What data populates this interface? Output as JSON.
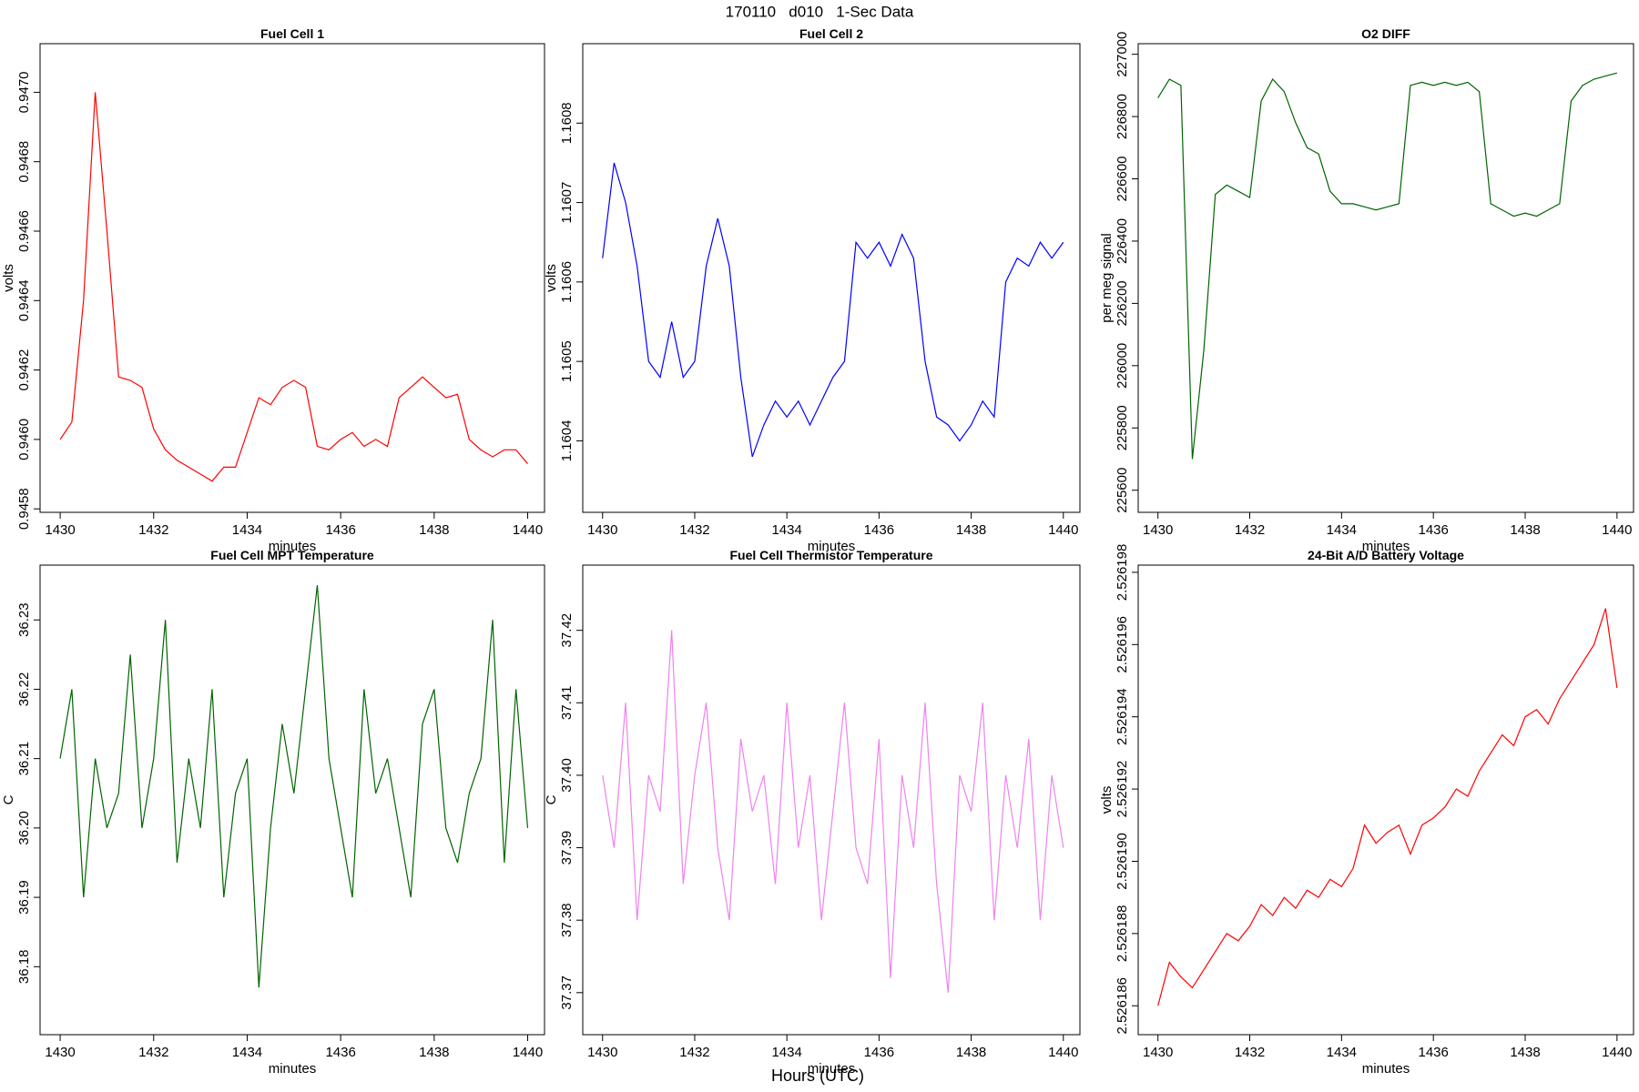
{
  "suptitle": "170110   d010   1-Sec Data",
  "supxlabel": "Hours (UTC)",
  "chart_data": [
    {
      "type": "line",
      "title": "Fuel Cell 1",
      "xlabel": "minutes",
      "ylabel": "volts",
      "color": "#ff0000",
      "x": [
        1430,
        1430.25,
        1430.5,
        1430.75,
        1431,
        1431.25,
        1431.5,
        1431.75,
        1432,
        1432.25,
        1432.5,
        1432.75,
        1433,
        1433.25,
        1433.5,
        1433.75,
        1434,
        1434.25,
        1434.5,
        1434.75,
        1435,
        1435.25,
        1435.5,
        1435.75,
        1436,
        1436.25,
        1436.5,
        1436.75,
        1437,
        1437.25,
        1437.5,
        1437.75,
        1438,
        1438.25,
        1438.5,
        1438.75,
        1439,
        1439.25,
        1439.5,
        1439.75,
        1440
      ],
      "values": [
        0.946,
        0.94605,
        0.9464,
        0.947,
        0.9466,
        0.94618,
        0.94617,
        0.94615,
        0.94603,
        0.94597,
        0.94594,
        0.94592,
        0.9459,
        0.94588,
        0.94592,
        0.94592,
        0.94602,
        0.94612,
        0.9461,
        0.94615,
        0.94617,
        0.94615,
        0.94598,
        0.94597,
        0.946,
        0.94602,
        0.94598,
        0.946,
        0.94598,
        0.94612,
        0.94615,
        0.94618,
        0.94615,
        0.94612,
        0.94613,
        0.946,
        0.94597,
        0.94595,
        0.94597,
        0.94597,
        0.94593
      ],
      "xlim": [
        1429.57,
        1440.36
      ],
      "xticks": [
        1430,
        1432,
        1434,
        1436,
        1438,
        1440
      ],
      "ylim": [
        0.94579,
        0.94714
      ],
      "yticks": [
        0.9458,
        {
          "value": 0.946,
          "label": "0.9460"
        },
        0.9462,
        0.9464,
        0.9466,
        0.9468,
        {
          "value": 0.947,
          "label": "0.9470"
        }
      ]
    },
    {
      "type": "line",
      "title": "Fuel Cell 2",
      "xlabel": "minutes",
      "ylabel": "volts",
      "color": "#0000ff",
      "x": [
        1430,
        1430.25,
        1430.5,
        1430.75,
        1431,
        1431.25,
        1431.5,
        1431.75,
        1432,
        1432.25,
        1432.5,
        1432.75,
        1433,
        1433.25,
        1433.5,
        1433.75,
        1434,
        1434.25,
        1434.5,
        1434.75,
        1435,
        1435.25,
        1435.5,
        1435.75,
        1436,
        1436.25,
        1436.5,
        1436.75,
        1437,
        1437.25,
        1437.5,
        1437.75,
        1438,
        1438.25,
        1438.5,
        1438.75,
        1439,
        1439.25,
        1439.5,
        1439.75,
        1440
      ],
      "values": [
        1.16063,
        1.16075,
        1.1607,
        1.16062,
        1.1605,
        1.16048,
        1.16055,
        1.16048,
        1.1605,
        1.16062,
        1.16068,
        1.16062,
        1.16048,
        1.16038,
        1.16042,
        1.16045,
        1.16043,
        1.16045,
        1.16042,
        1.16045,
        1.16048,
        1.1605,
        1.16065,
        1.16063,
        1.16065,
        1.16062,
        1.16066,
        1.16063,
        1.1605,
        1.16043,
        1.16042,
        1.1604,
        1.16042,
        1.16045,
        1.16043,
        1.1606,
        1.16063,
        1.16062,
        1.16065,
        1.16063,
        1.16065
      ],
      "xlim": [
        1429.57,
        1440.36
      ],
      "xticks": [
        1430,
        1432,
        1434,
        1436,
        1438,
        1440
      ],
      "ylim": [
        1.16031,
        1.1609
      ],
      "yticks": [
        1.1604,
        1.1605,
        1.1606,
        1.1607,
        1.1608
      ]
    },
    {
      "type": "line",
      "title": "O2 DIFF",
      "xlabel": "minutes",
      "ylabel": "per meg signal",
      "color": "#006400",
      "x": [
        1430,
        1430.25,
        1430.5,
        1430.75,
        1431,
        1431.25,
        1431.5,
        1431.75,
        1432,
        1432.25,
        1432.5,
        1432.75,
        1433,
        1433.25,
        1433.5,
        1433.75,
        1434,
        1434.25,
        1434.5,
        1434.75,
        1435,
        1435.25,
        1435.5,
        1435.75,
        1436,
        1436.25,
        1436.5,
        1436.75,
        1437,
        1437.25,
        1437.5,
        1437.75,
        1438,
        1438.25,
        1438.5,
        1438.75,
        1439,
        1439.25,
        1439.5,
        1439.75,
        1440
      ],
      "values": [
        226860,
        226920,
        226900,
        225700,
        226050,
        226550,
        226580,
        226560,
        226540,
        226850,
        226920,
        226880,
        226780,
        226700,
        226680,
        226560,
        226520,
        226520,
        226510,
        226500,
        226510,
        226520,
        226900,
        226910,
        226900,
        226910,
        226900,
        226910,
        226880,
        226520,
        226500,
        226480,
        226490,
        226480,
        226500,
        226520,
        226850,
        226900,
        226920,
        226930,
        226940
      ],
      "xlim": [
        1429.57,
        1440.36
      ],
      "xticks": [
        1430,
        1432,
        1434,
        1436,
        1438,
        1440
      ],
      "ylim": [
        225529,
        227034
      ],
      "yticks": [
        225600,
        225800,
        226000,
        226200,
        226400,
        226600,
        226800,
        227000
      ]
    },
    {
      "type": "line",
      "title": "Fuel Cell MPT Temperature",
      "xlabel": "minutes",
      "ylabel": "C",
      "color": "#006400",
      "x": [
        1430,
        1430.25,
        1430.5,
        1430.75,
        1431,
        1431.25,
        1431.5,
        1431.75,
        1432,
        1432.25,
        1432.5,
        1432.75,
        1433,
        1433.25,
        1433.5,
        1433.75,
        1434,
        1434.25,
        1434.5,
        1434.75,
        1435,
        1435.25,
        1435.5,
        1435.75,
        1436,
        1436.25,
        1436.5,
        1436.75,
        1437,
        1437.25,
        1437.5,
        1437.75,
        1438,
        1438.25,
        1438.5,
        1438.75,
        1439,
        1439.25,
        1439.5,
        1439.75,
        1440
      ],
      "values": [
        36.21,
        36.22,
        36.19,
        36.21,
        36.2,
        36.205,
        36.225,
        36.2,
        36.21,
        36.23,
        36.195,
        36.21,
        36.2,
        36.22,
        36.19,
        36.205,
        36.21,
        36.177,
        36.2,
        36.215,
        36.205,
        36.22,
        36.235,
        36.21,
        36.2,
        36.19,
        36.22,
        36.205,
        36.21,
        36.2,
        36.19,
        36.215,
        36.22,
        36.2,
        36.195,
        36.205,
        36.21,
        36.23,
        36.195,
        36.22,
        36.2
      ],
      "xlim": [
        1429.57,
        1440.36
      ],
      "xticks": [
        1430,
        1432,
        1434,
        1436,
        1438,
        1440
      ],
      "ylim": [
        36.1702,
        36.2379
      ],
      "yticks": [
        36.18,
        36.19,
        {
          "value": 36.2,
          "label": "36.20"
        },
        36.21,
        36.22,
        36.23
      ]
    },
    {
      "type": "line",
      "title": "Fuel Cell Thermistor Temperature",
      "xlabel": "minutes",
      "ylabel": "C",
      "color": "#ee82ee",
      "x": [
        1430,
        1430.25,
        1430.5,
        1430.75,
        1431,
        1431.25,
        1431.5,
        1431.75,
        1432,
        1432.25,
        1432.5,
        1432.75,
        1433,
        1433.25,
        1433.5,
        1433.75,
        1434,
        1434.25,
        1434.5,
        1434.75,
        1435,
        1435.25,
        1435.5,
        1435.75,
        1436,
        1436.25,
        1436.5,
        1436.75,
        1437,
        1437.25,
        1437.5,
        1437.75,
        1438,
        1438.25,
        1438.5,
        1438.75,
        1439,
        1439.25,
        1439.5,
        1439.75,
        1440
      ],
      "values": [
        37.4,
        37.39,
        37.41,
        37.38,
        37.4,
        37.395,
        37.42,
        37.385,
        37.4,
        37.41,
        37.39,
        37.38,
        37.405,
        37.395,
        37.4,
        37.385,
        37.41,
        37.39,
        37.4,
        37.38,
        37.395,
        37.41,
        37.39,
        37.385,
        37.405,
        37.372,
        37.4,
        37.39,
        37.41,
        37.385,
        37.37,
        37.4,
        37.395,
        37.41,
        37.38,
        37.4,
        37.39,
        37.405,
        37.38,
        37.4,
        37.39
      ],
      "xlim": [
        1429.57,
        1440.36
      ],
      "xticks": [
        1430,
        1432,
        1434,
        1436,
        1438,
        1440
      ],
      "ylim": [
        37.3642,
        37.429
      ],
      "yticks": [
        37.37,
        37.38,
        37.39,
        {
          "value": 37.4,
          "label": "37.40"
        },
        37.41,
        37.42
      ]
    },
    {
      "type": "line",
      "title": "24-Bit A/D Battery Voltage",
      "xlabel": "minutes",
      "ylabel": "volts",
      "color": "#ff0000",
      "x": [
        1430,
        1430.25,
        1430.5,
        1430.75,
        1431,
        1431.25,
        1431.5,
        1431.75,
        1432,
        1432.25,
        1432.5,
        1432.75,
        1433,
        1433.25,
        1433.5,
        1433.75,
        1434,
        1434.25,
        1434.5,
        1434.75,
        1435,
        1435.25,
        1435.5,
        1435.75,
        1436,
        1436.25,
        1436.5,
        1436.75,
        1437,
        1437.25,
        1437.5,
        1437.75,
        1438,
        1438.25,
        1438.5,
        1438.75,
        1439,
        1439.25,
        1439.5,
        1439.75,
        1440
      ],
      "values": [
        2.526186,
        2.5261872,
        2.5261868,
        2.5261865,
        2.526187,
        2.5261875,
        2.526188,
        2.5261878,
        2.5261882,
        2.5261888,
        2.5261885,
        2.526189,
        2.5261887,
        2.5261892,
        2.526189,
        2.5261895,
        2.5261893,
        2.5261898,
        2.526191,
        2.5261905,
        2.5261908,
        2.526191,
        2.5261902,
        2.526191,
        2.5261912,
        2.5261915,
        2.526192,
        2.5261918,
        2.5261925,
        2.526193,
        2.5261935,
        2.5261932,
        2.526194,
        2.5261942,
        2.5261938,
        2.5261945,
        2.526195,
        2.5261955,
        2.526196,
        2.526197,
        2.5261948
      ],
      "xlim": [
        1429.57,
        1440.36
      ],
      "xticks": [
        1430,
        1432,
        1434,
        1436,
        1438,
        1440
      ],
      "ylim": [
        2.5261852,
        2.5261982
      ],
      "yticks": [
        2.526186,
        2.526188,
        {
          "value": 2.52619,
          "label": "2.526190"
        },
        2.526192,
        2.526194,
        2.526196,
        2.526198
      ]
    }
  ]
}
